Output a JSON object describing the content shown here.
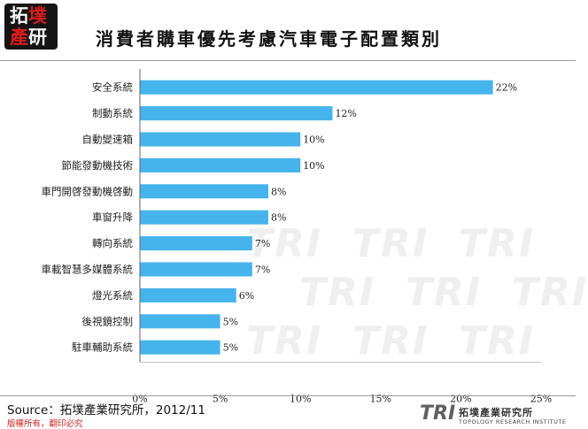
{
  "header": {
    "logo_line1_a": "拓",
    "logo_line1_b": "墣",
    "logo_line2_a": "產",
    "logo_line2_b": "研",
    "title": "消費者購車優先考慮汽車電子配置類別"
  },
  "chart_data": {
    "type": "bar",
    "orientation": "horizontal",
    "title": "消費者購車優先考慮汽車電子配置類別",
    "categories": [
      "安全系統",
      "制動系統",
      "自動變速箱",
      "節能發動機技術",
      "車門開啓發動機啓動",
      "車窗升降",
      "轉向系統",
      "車載智慧多媒體系統",
      "燈光系統",
      "後視鏡控制",
      "駐車輔助系統"
    ],
    "values": [
      22,
      12,
      10,
      10,
      8,
      8,
      7,
      7,
      6,
      5,
      5
    ],
    "value_labels": [
      "22%",
      "12%",
      "10%",
      "10%",
      "8%",
      "8%",
      "7%",
      "7%",
      "6%",
      "5%",
      "5%"
    ],
    "x_ticks": [
      0,
      5,
      10,
      15,
      20,
      25
    ],
    "x_tick_labels": [
      "0%",
      "5%",
      "10%",
      "15%",
      "20%",
      "25%"
    ],
    "xlim": [
      0,
      25
    ],
    "bar_color": "#45b4ec",
    "grid": false,
    "legend": "none"
  },
  "footer": {
    "source": "Source：拓墣產業研究所，2012/11",
    "copyright": "版權所有，翻印必究",
    "brand_logo": "TRI",
    "brand_name": "拓墣產業研究所",
    "brand_subtitle": "TOPOLOGY RESEARCH INSTITUTE"
  }
}
